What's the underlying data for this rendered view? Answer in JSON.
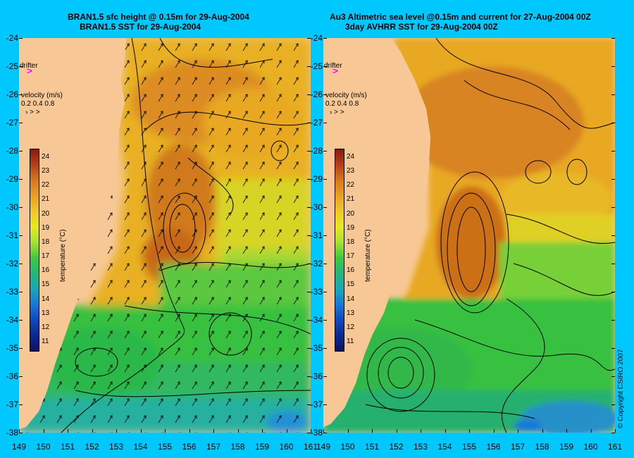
{
  "left_panel": {
    "title_line1": "BRAN1.5 sfc height @ 0.15m for 29-Aug-2004",
    "title_line2": "BRAN1.5 SST for 29-Aug-2004",
    "drifter_label": "drifter",
    "drifter_marker": ">",
    "velocity_title": "velocity (m/s)",
    "velocity_values": "0.2 0.4 0.8",
    "velocity_arrows": "› > >"
  },
  "right_panel": {
    "title_line1": "Au3 Altimetric sea level  @0.15m and current for 27-Aug-2004 00Z",
    "title_line2": "3day AVHRR SST for 29-Aug-2004 00Z",
    "drifter_label": "drifter",
    "drifter_marker": ">",
    "velocity_title": "velocity (m/s)",
    "velocity_values": "0.2 0.4 0.8",
    "velocity_arrows": "› > >"
  },
  "map": {
    "lat_ticks": [
      "-24",
      "-25",
      "-26",
      "-27",
      "-28",
      "-29",
      "-30",
      "-31",
      "-32",
      "-33",
      "-34",
      "-35",
      "-36",
      "-37",
      "-38"
    ],
    "lon_ticks": [
      "149",
      "150",
      "151",
      "152",
      "153",
      "154",
      "155",
      "156",
      "157",
      "158",
      "159",
      "160",
      "161"
    ],
    "lat_range": [
      -38,
      -24
    ],
    "lon_range": [
      149,
      161
    ]
  },
  "colorbar": {
    "label": "temperature (°C)",
    "ticks": [
      "24",
      "23",
      "22",
      "21",
      "20",
      "19",
      "18",
      "17",
      "16",
      "15",
      "14",
      "13",
      "12",
      "11"
    ],
    "colors": [
      "#8a1a0a",
      "#b4401a",
      "#d8781e",
      "#e8a020",
      "#f0c828",
      "#e8e820",
      "#a8e030",
      "#40c840",
      "#20b878",
      "#18a8b8",
      "#1878d8",
      "#1048c0",
      "#0c2890",
      "#0a1466"
    ]
  },
  "copyright": "© Copyright CSIRO 2007",
  "colors": {
    "background": "#00c8ff",
    "land": "#f7c896",
    "drifter": "#ff00ff"
  }
}
